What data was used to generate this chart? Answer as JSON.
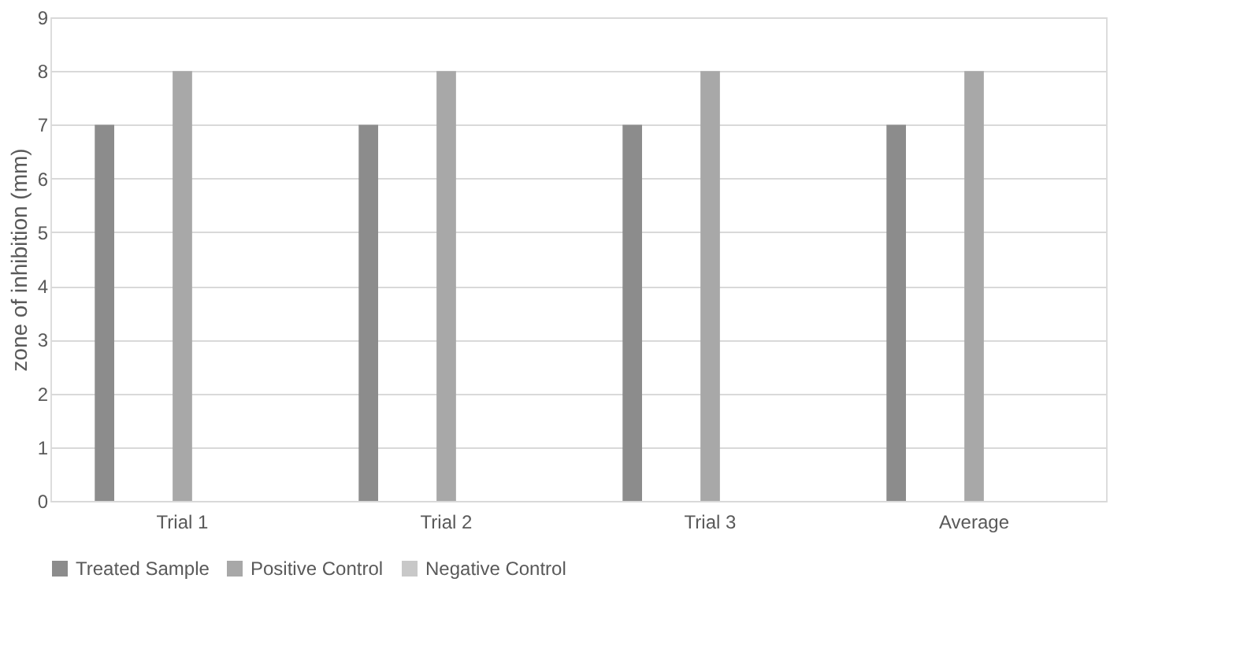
{
  "chart_data": {
    "type": "bar",
    "ylabel": "zone of inhibition (mm)",
    "categories": [
      "Trial 1",
      "Trial 2",
      "Trial 3",
      "Average"
    ],
    "series": [
      {
        "name": "Treated Sample",
        "color": "#8c8c8c",
        "values": [
          7,
          7,
          7,
          7
        ]
      },
      {
        "name": "Positive Control",
        "color": "#a8a8a8",
        "values": [
          8,
          8,
          8,
          8
        ]
      },
      {
        "name": "Negative Control",
        "color": "#c8c8c8",
        "values": [
          0,
          0,
          0,
          0
        ]
      }
    ],
    "ylim": [
      0,
      9
    ],
    "yticks": [
      0,
      1,
      2,
      3,
      4,
      5,
      6,
      7,
      8,
      9
    ],
    "grid": "y",
    "legend": "bottom"
  }
}
